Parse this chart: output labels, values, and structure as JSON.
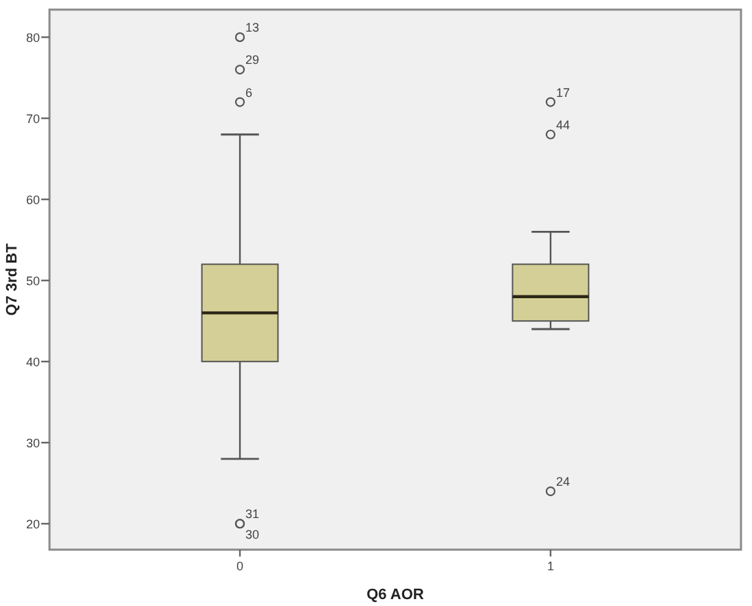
{
  "chart_data": {
    "type": "box",
    "xlabel": "Q6 AOR",
    "ylabel": "Q7 3rd BT",
    "categories": [
      "0",
      "1"
    ],
    "boxes": [
      {
        "low": 28,
        "q1": 40,
        "median": 46,
        "q3": 52,
        "high": 68,
        "outliers": [
          80,
          76,
          72,
          20,
          20
        ]
      },
      {
        "low": 44,
        "q1": 45,
        "median": 48,
        "q3": 52,
        "high": 56,
        "outliers": [
          72,
          68,
          24
        ]
      }
    ],
    "color": "#d4cf96",
    "ylim": [
      16.8,
      83.4
    ],
    "yticks": [
      20,
      30,
      40,
      50,
      60,
      70,
      80
    ],
    "annotations": [
      "13",
      "29",
      "6",
      "31",
      "30",
      "17",
      "44",
      "24"
    ]
  }
}
